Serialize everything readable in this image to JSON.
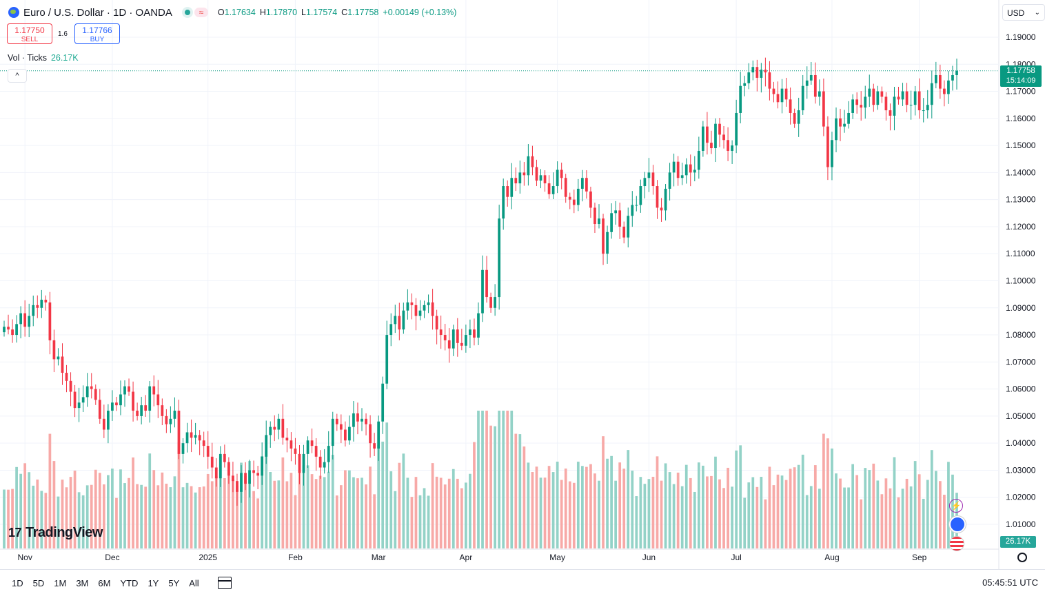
{
  "header": {
    "title": "Euro / U.S. Dollar · 1D · OANDA",
    "open_label": "O",
    "open": "1.17634",
    "high_label": "H",
    "high": "1.17870",
    "low_label": "L",
    "low": "1.17574",
    "close_label": "C",
    "close": "1.17758",
    "change": "+0.00149 (+0.13%)",
    "wave_icon": "≈"
  },
  "trade": {
    "sell_price": "1.17750",
    "sell_label": "SELL",
    "spread": "1.6",
    "buy_price": "1.17766",
    "buy_label": "BUY"
  },
  "volume_legend": {
    "label": "Vol · Ticks",
    "value": "26.17K"
  },
  "collapse_icon": "^",
  "currency": {
    "value": "USD",
    "chevron": "⌄"
  },
  "price_tag": {
    "price": "1.17758",
    "countdown": "15:14:09"
  },
  "volume_tag": "26.17K",
  "side_icons": {
    "bolt": "⚡"
  },
  "brand": {
    "mark": "17",
    "name": "TradingView"
  },
  "timeframes": [
    "1D",
    "5D",
    "1M",
    "3M",
    "6M",
    "YTD",
    "1Y",
    "5Y",
    "All"
  ],
  "clock": "05:45:51 UTC",
  "colors": {
    "up": "#089981",
    "down": "#f23645",
    "up_vol": "#93d2c7",
    "down_vol": "#f7a9a7",
    "grid": "#f0f3fa",
    "axis_text": "#131722"
  },
  "chart_data": {
    "type": "candlestick",
    "symbol": "Euro / U.S. Dollar",
    "interval": "1D",
    "ylim": [
      1.0,
      1.195
    ],
    "y_ticks": [
      "1.19000",
      "1.18000",
      "1.17000",
      "1.16000",
      "1.15000",
      "1.14000",
      "1.13000",
      "1.12000",
      "1.11000",
      "1.10000",
      "1.09000",
      "1.08000",
      "1.07000",
      "1.06000",
      "1.05000",
      "1.04000",
      "1.03000",
      "1.02000",
      "1.01000"
    ],
    "x_tick_labels": [
      "Nov",
      "Dec",
      "2025",
      "Feb",
      "Mar",
      "Apr",
      "May",
      "Jun",
      "Jul",
      "Aug",
      "Sep"
    ],
    "x_tick_index": [
      5,
      26,
      49,
      70,
      90,
      111,
      133,
      155,
      176,
      199,
      220
    ],
    "volume_max": 52000,
    "closes": [
      1.083,
      1.082,
      1.08,
      1.084,
      1.088,
      1.083,
      1.087,
      1.091,
      1.09,
      1.093,
      1.092,
      1.078,
      1.071,
      1.072,
      1.066,
      1.063,
      1.059,
      1.053,
      1.055,
      1.057,
      1.061,
      1.06,
      1.056,
      1.049,
      1.045,
      1.052,
      1.055,
      1.054,
      1.058,
      1.061,
      1.059,
      1.052,
      1.05,
      1.054,
      1.052,
      1.061,
      1.058,
      1.054,
      1.05,
      1.047,
      1.049,
      1.052,
      1.036,
      1.04,
      1.044,
      1.042,
      1.043,
      1.041,
      1.039,
      1.035,
      1.031,
      1.027,
      1.036,
      1.033,
      1.028,
      1.026,
      1.022,
      1.029,
      1.025,
      1.03,
      1.029,
      1.028,
      1.035,
      1.043,
      1.046,
      1.045,
      1.049,
      1.042,
      1.041,
      1.038,
      1.036,
      1.029,
      1.036,
      1.041,
      1.039,
      1.035,
      1.031,
      1.033,
      1.039,
      1.049,
      1.047,
      1.045,
      1.041,
      1.046,
      1.051,
      1.048,
      1.049,
      1.047,
      1.04,
      1.038,
      1.048,
      1.062,
      1.08,
      1.084,
      1.087,
      1.082,
      1.089,
      1.092,
      1.091,
      1.087,
      1.089,
      1.091,
      1.092,
      1.087,
      1.082,
      1.08,
      1.078,
      1.075,
      1.082,
      1.077,
      1.076,
      1.08,
      1.082,
      1.079,
      1.088,
      1.104,
      1.094,
      1.09,
      1.094,
      1.123,
      1.135,
      1.131,
      1.138,
      1.136,
      1.14,
      1.139,
      1.146,
      1.142,
      1.137,
      1.139,
      1.136,
      1.132,
      1.135,
      1.141,
      1.138,
      1.131,
      1.13,
      1.128,
      1.134,
      1.138,
      1.133,
      1.127,
      1.121,
      1.123,
      1.11,
      1.118,
      1.125,
      1.126,
      1.12,
      1.116,
      1.124,
      1.128,
      1.128,
      1.135,
      1.138,
      1.14,
      1.135,
      1.127,
      1.126,
      1.134,
      1.14,
      1.144,
      1.138,
      1.139,
      1.143,
      1.14,
      1.141,
      1.148,
      1.157,
      1.151,
      1.149,
      1.158,
      1.154,
      1.152,
      1.148,
      1.15,
      1.162,
      1.172,
      1.173,
      1.177,
      1.179,
      1.175,
      1.178,
      1.177,
      1.171,
      1.169,
      1.166,
      1.171,
      1.167,
      1.162,
      1.158,
      1.163,
      1.172,
      1.174,
      1.176,
      1.168,
      1.17,
      1.157,
      1.142,
      1.152,
      1.16,
      1.157,
      1.158,
      1.162,
      1.167,
      1.165,
      1.164,
      1.168,
      1.171,
      1.165,
      1.17,
      1.168,
      1.163,
      1.161,
      1.168,
      1.167,
      1.17,
      1.165,
      1.165,
      1.17,
      1.163,
      1.163,
      1.165,
      1.173,
      1.176,
      1.171,
      1.169,
      1.174,
      1.176,
      1.1776
    ]
  }
}
